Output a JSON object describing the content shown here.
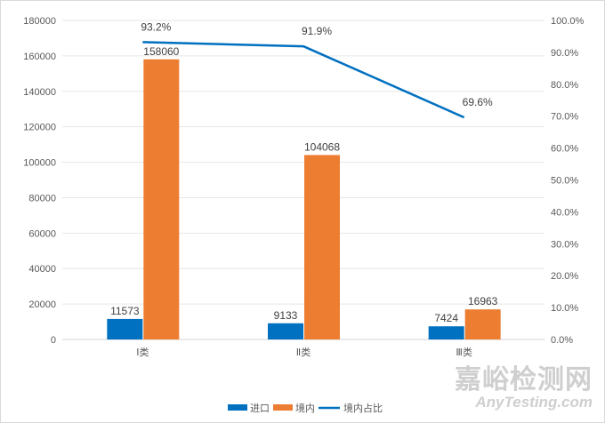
{
  "chart_data": {
    "type": "bar",
    "categories": [
      "Ⅰ类",
      "Ⅱ类",
      "Ⅲ类"
    ],
    "series": [
      {
        "name": "进口",
        "kind": "bar",
        "axis": "left",
        "color": "#0070C0",
        "values": [
          11573,
          9133,
          7424
        ]
      },
      {
        "name": "境内",
        "kind": "bar",
        "axis": "left",
        "color": "#ED7D31",
        "values": [
          158060,
          104068,
          16963
        ]
      },
      {
        "name": "境内占比",
        "kind": "line",
        "axis": "right",
        "color": "#0070C0",
        "values": [
          93.2,
          91.9,
          69.6
        ],
        "labels": [
          "93.2%",
          "91.9%",
          "69.6%"
        ]
      }
    ],
    "ylim": [
      0,
      180000
    ],
    "yticks": [
      "0",
      "20000",
      "40000",
      "60000",
      "80000",
      "100000",
      "120000",
      "140000",
      "160000",
      "180000"
    ],
    "y2lim": [
      0,
      100
    ],
    "y2ticks": [
      "0.0%",
      "10.0%",
      "20.0%",
      "30.0%",
      "40.0%",
      "50.0%",
      "60.0%",
      "70.0%",
      "80.0%",
      "90.0%",
      "100.0%"
    ],
    "grid": true,
    "legend": "bottom",
    "title": "",
    "xlabel": "",
    "ylabel": ""
  },
  "watermark": {
    "line1": "嘉峪检测网",
    "line2": "AnyTesting.com"
  }
}
